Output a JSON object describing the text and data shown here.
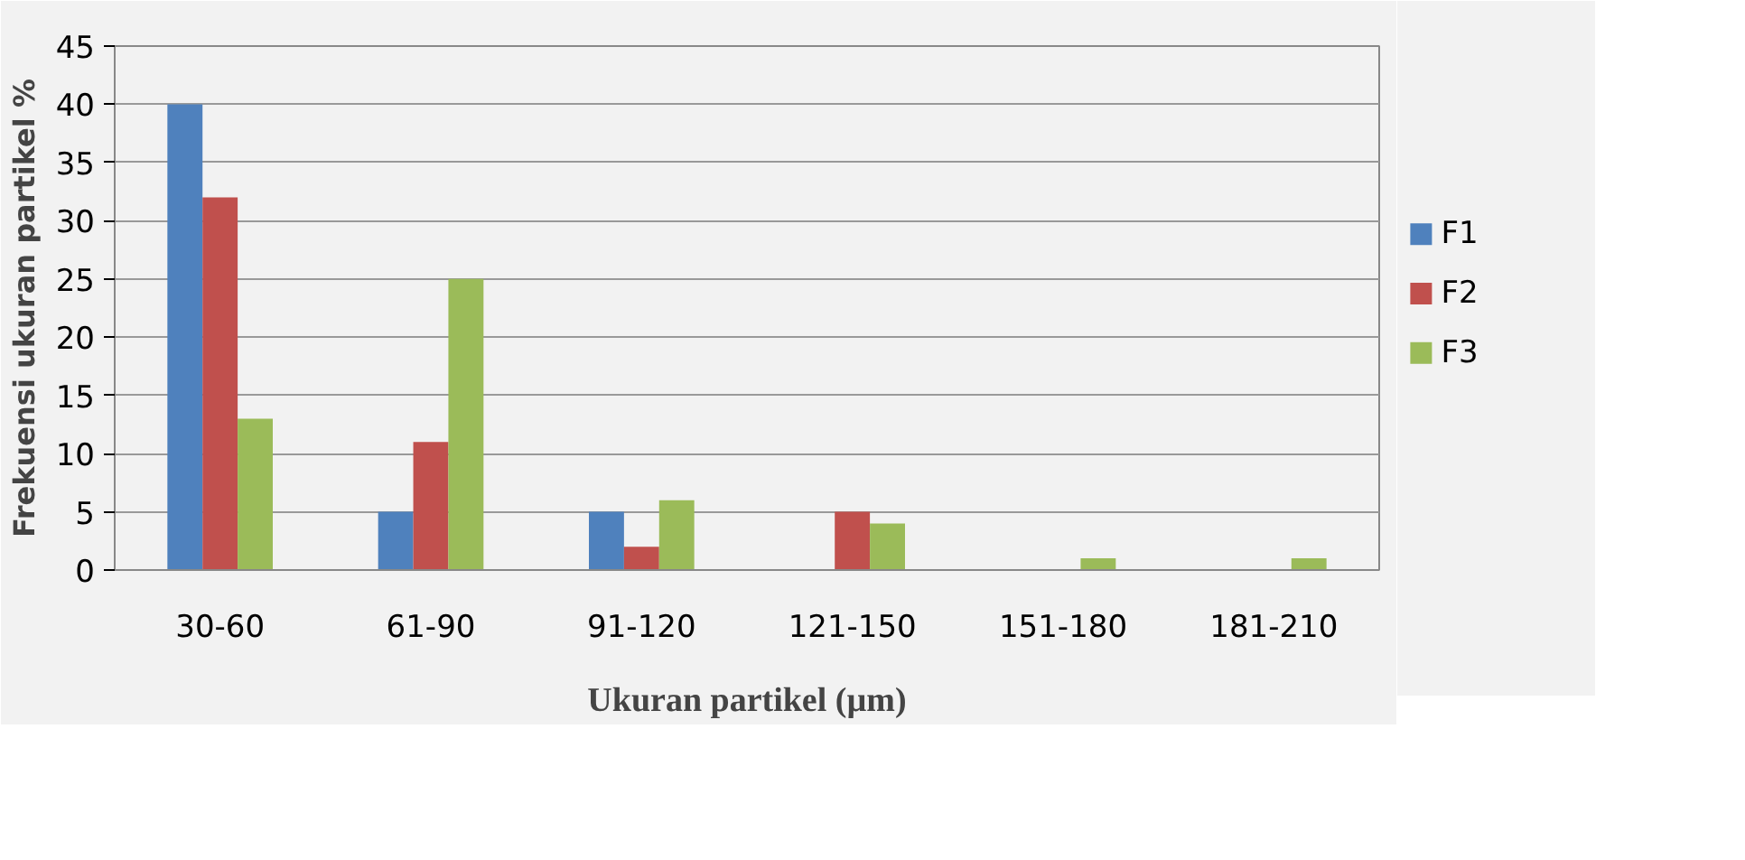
{
  "chart_data": {
    "type": "bar",
    "xlabel": "Ukuran partikel (µm)",
    "ylabel": "Frekuensi ukuran partikel %",
    "categories": [
      "30-60",
      "61-90",
      "91-120",
      "121-150",
      "151-180",
      "181-210"
    ],
    "series": [
      {
        "name": "F1",
        "color": "#4f81bd",
        "values": [
          40,
          5,
          5,
          0,
          0,
          0
        ]
      },
      {
        "name": "F2",
        "color": "#c0504d",
        "values": [
          32,
          11,
          2,
          5,
          0,
          0
        ]
      },
      {
        "name": "F3",
        "color": "#9bbb59",
        "values": [
          13,
          25,
          6,
          4,
          1,
          1
        ]
      }
    ],
    "ylim": [
      0,
      45
    ],
    "yticks": [
      0,
      5,
      10,
      15,
      20,
      25,
      30,
      35,
      40,
      45
    ],
    "grid": "y",
    "legend": "right"
  }
}
